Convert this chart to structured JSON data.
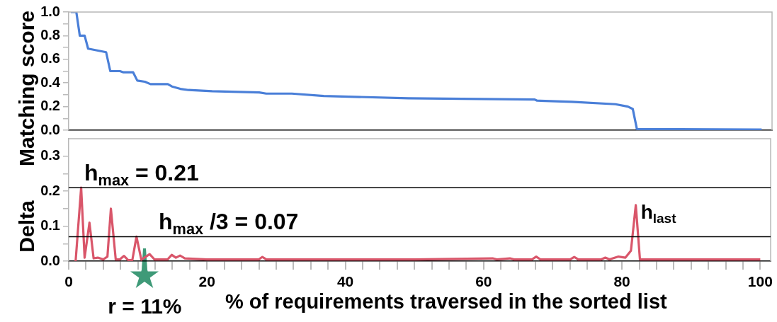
{
  "chart_data": [
    {
      "type": "line",
      "ylabel": "Matching score",
      "tick_labels": "y",
      "xlim": [
        0,
        101.5
      ],
      "ylim": [
        0,
        1.0
      ],
      "yticks": [
        {
          "value": 0,
          "label": "0.0"
        },
        {
          "value": 0.1,
          "label": null
        },
        {
          "value": 0.2,
          "label": "0.2"
        },
        {
          "value": 0.3,
          "label": null
        },
        {
          "value": 0.4,
          "label": "0.4"
        },
        {
          "value": 0.5,
          "label": null
        },
        {
          "value": 0.6,
          "label": "0.6"
        },
        {
          "value": 0.7,
          "label": null
        },
        {
          "value": 0.8,
          "label": "0.8"
        },
        {
          "value": 0.9,
          "label": null
        },
        {
          "value": 1.0,
          "label": "1.0"
        }
      ],
      "series": [
        {
          "color": "#4a7fd8",
          "x": [
            0.3,
            1.1,
            1.6,
            2.3,
            2.8,
            5.4,
            6.0,
            7.4,
            7.9,
            9.3,
            9.9,
            11.0,
            11.8,
            14.3,
            14.9,
            16.1,
            17.3,
            20.7,
            27.5,
            28.5,
            32.2,
            36.8,
            49.0,
            67.2,
            67.6,
            72.6,
            78.9,
            80.7,
            81.4,
            82.0,
            100
          ],
          "values": [
            1.0,
            1.0,
            0.8,
            0.8,
            0.69,
            0.66,
            0.5,
            0.5,
            0.49,
            0.49,
            0.42,
            0.41,
            0.39,
            0.39,
            0.37,
            0.35,
            0.34,
            0.33,
            0.32,
            0.31,
            0.31,
            0.29,
            0.27,
            0.26,
            0.25,
            0.24,
            0.22,
            0.2,
            0.18,
            0.01,
            0.005
          ]
        }
      ]
    },
    {
      "type": "line",
      "ylabel": "Delta",
      "xlabel": "% of requirements traversed in the sorted list",
      "xlim": [
        0,
        101.5
      ],
      "ylim": [
        0,
        0.35
      ],
      "xticks": [
        0,
        {
          "value": 2.5,
          "label": null
        },
        {
          "value": 5,
          "label": null
        },
        {
          "value": 7.5,
          "label": null
        },
        {
          "value": 10,
          "label": null
        },
        {
          "value": 12.5,
          "label": null
        },
        {
          "value": 15,
          "label": null
        },
        {
          "value": 17.5,
          "label": null
        },
        20,
        {
          "value": 22.5,
          "label": null
        },
        {
          "value": 25,
          "label": null
        },
        {
          "value": 27.5,
          "label": null
        },
        {
          "value": 30,
          "label": null
        },
        {
          "value": 32.5,
          "label": null
        },
        {
          "value": 35,
          "label": null
        },
        {
          "value": 37.5,
          "label": null
        },
        40,
        {
          "value": 42.5,
          "label": null
        },
        {
          "value": 45,
          "label": null
        },
        {
          "value": 47.5,
          "label": null
        },
        {
          "value": 50,
          "label": null
        },
        {
          "value": 52.5,
          "label": null
        },
        {
          "value": 55,
          "label": null
        },
        {
          "value": 57.5,
          "label": null
        },
        60,
        {
          "value": 62.5,
          "label": null
        },
        {
          "value": 65,
          "label": null
        },
        {
          "value": 67.5,
          "label": null
        },
        {
          "value": 70,
          "label": null
        },
        {
          "value": 72.5,
          "label": null
        },
        {
          "value": 75,
          "label": null
        },
        {
          "value": 77.5,
          "label": null
        },
        80,
        {
          "value": 82.5,
          "label": null
        },
        {
          "value": 85,
          "label": null
        },
        {
          "value": 87.5,
          "label": null
        },
        {
          "value": 90,
          "label": null
        },
        {
          "value": 92.5,
          "label": null
        },
        {
          "value": 95,
          "label": null
        },
        {
          "value": 97.5,
          "label": null
        },
        100
      ],
      "yticks": [
        {
          "value": 0,
          "label": "0.0"
        },
        {
          "value": 0.05,
          "label": null
        },
        {
          "value": 0.1,
          "label": "0.1"
        },
        {
          "value": 0.15,
          "label": null
        },
        {
          "value": 0.2,
          "label": "0.2"
        },
        {
          "value": 0.25,
          "label": null
        },
        {
          "value": 0.3,
          "label": "0.3"
        }
      ],
      "series": [
        {
          "color": "#d9566a",
          "x": [
            1.0,
            1.8,
            2.3,
            3.0,
            3.6,
            4.2,
            5.0,
            5.6,
            6.1,
            6.8,
            7.4,
            8.0,
            8.6,
            9.2,
            9.8,
            10.5,
            11.1,
            11.7,
            12.4,
            14.3,
            14.9,
            15.5,
            16.1,
            16.8,
            20,
            27.5,
            28.0,
            28.6,
            40,
            50,
            61.3,
            61.9,
            63.8,
            64.4,
            67.0,
            67.6,
            68.2,
            72.5,
            73.1,
            73.7,
            77.0,
            77.6,
            78.2,
            79.5,
            80.5,
            81.3,
            82.0,
            82.6,
            100
          ],
          "values": [
            0,
            0.21,
            0.01,
            0.11,
            0.008,
            0.01,
            0.005,
            0.013,
            0.15,
            0.005,
            0.005,
            0.015,
            0.003,
            0.003,
            0.07,
            0.004,
            0.012,
            0.02,
            0.005,
            0.005,
            0.018,
            0.01,
            0.016,
            0.008,
            0.005,
            0.005,
            0.012,
            0.005,
            0.005,
            0.005,
            0.008,
            0.005,
            0.008,
            0.005,
            0.005,
            0.013,
            0.005,
            0.005,
            0.012,
            0.005,
            0.005,
            0.01,
            0.005,
            0.013,
            0.01,
            0.03,
            0.16,
            0.005,
            0.005
          ]
        }
      ],
      "ref_lines": [
        {
          "axis": "y",
          "value": 0.21,
          "label": "h$_{max}$ = 0.21",
          "color": "#000000"
        },
        {
          "axis": "y",
          "value": 0.07,
          "label": "h$_{max}$ /3 = 0.07",
          "color": "#000000"
        }
      ],
      "annotations": [
        {
          "text": "h$_{last}$",
          "x": 82,
          "y": 0.16
        },
        {
          "text": "r = 11%",
          "x": 11,
          "y": 0
        }
      ]
    }
  ]
}
